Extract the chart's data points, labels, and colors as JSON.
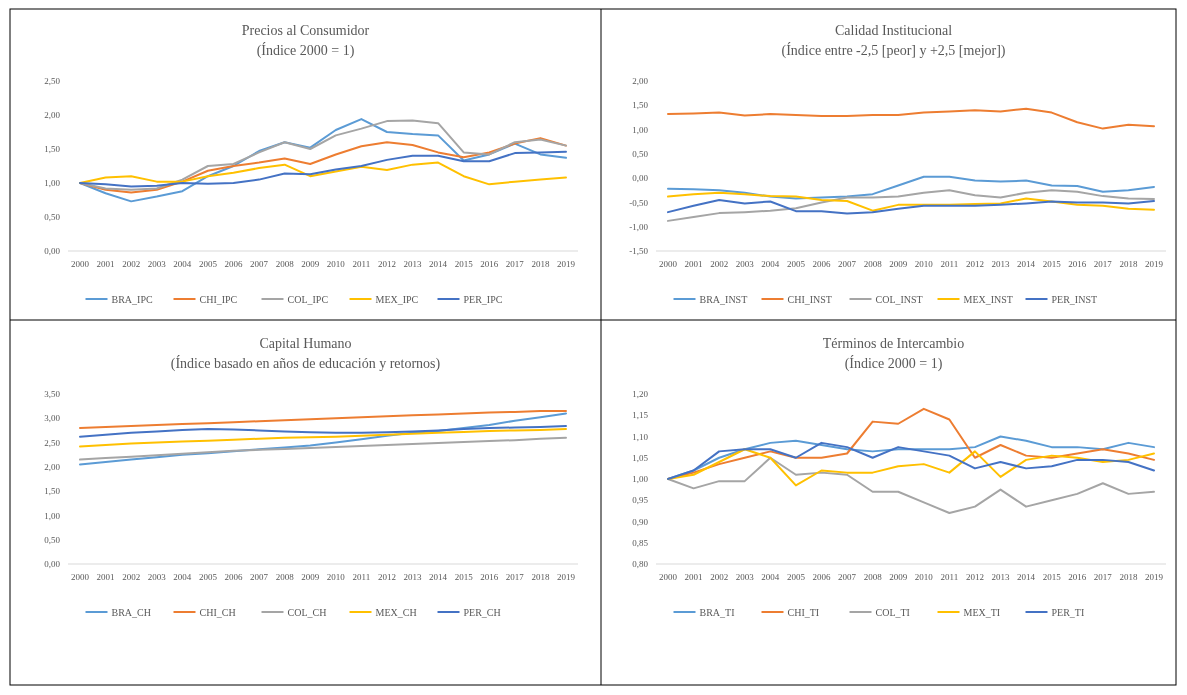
{
  "chart_data": [
    {
      "type": "line",
      "title": "Precios al Consumidor",
      "subtitle": "(Índice 2000 = 1)",
      "categories": [
        "2000",
        "2001",
        "2002",
        "2003",
        "2004",
        "2005",
        "2006",
        "2007",
        "2008",
        "2009",
        "2010",
        "2011",
        "2012",
        "2013",
        "2014",
        "2015",
        "2016",
        "2017",
        "2018",
        "2019"
      ],
      "ylim": [
        0,
        2.5
      ],
      "yticks": [
        {
          "value": 0,
          "label": "0,00"
        },
        {
          "value": 0.5,
          "label": "0,50"
        },
        {
          "value": 1,
          "label": "1,00"
        },
        {
          "value": 1.5,
          "label": "1,50"
        },
        {
          "value": 2,
          "label": "2,00"
        },
        {
          "value": 2.5,
          "label": "2,50"
        }
      ],
      "legend": "bottom",
      "grid": false,
      "series": [
        {
          "name": "BRA_IPC",
          "color": "#5b9bd5",
          "values": [
            1.0,
            0.85,
            0.73,
            0.8,
            0.88,
            1.1,
            1.25,
            1.47,
            1.6,
            1.52,
            1.78,
            1.94,
            1.75,
            1.72,
            1.7,
            1.33,
            1.42,
            1.58,
            1.42,
            1.37
          ]
        },
        {
          "name": "CHI_IPC",
          "color": "#ed7d31",
          "values": [
            1.0,
            0.9,
            0.86,
            0.9,
            1.02,
            1.18,
            1.25,
            1.3,
            1.36,
            1.28,
            1.42,
            1.54,
            1.6,
            1.56,
            1.45,
            1.38,
            1.45,
            1.58,
            1.66,
            1.55
          ]
        },
        {
          "name": "COL_IPC",
          "color": "#a5a5a5",
          "values": [
            1.0,
            0.92,
            0.9,
            0.92,
            1.05,
            1.25,
            1.28,
            1.45,
            1.6,
            1.5,
            1.7,
            1.8,
            1.91,
            1.92,
            1.88,
            1.45,
            1.42,
            1.6,
            1.64,
            1.55
          ]
        },
        {
          "name": "MEX_IPC",
          "color": "#ffc000",
          "values": [
            1.0,
            1.08,
            1.1,
            1.02,
            1.02,
            1.1,
            1.15,
            1.22,
            1.27,
            1.1,
            1.17,
            1.24,
            1.19,
            1.27,
            1.3,
            1.1,
            0.98,
            1.02,
            1.05,
            1.08
          ]
        },
        {
          "name": "PER_IPC",
          "color": "#4472c4",
          "values": [
            1.0,
            0.98,
            0.95,
            0.96,
            1.0,
            0.99,
            1.0,
            1.05,
            1.14,
            1.13,
            1.2,
            1.25,
            1.34,
            1.4,
            1.4,
            1.32,
            1.32,
            1.44,
            1.45,
            1.46
          ]
        }
      ]
    },
    {
      "type": "line",
      "title": "Calidad Institucional",
      "subtitle": "(Índice entre -2,5 [peor] y +2,5 [mejor])",
      "categories": [
        "2000",
        "2001",
        "2002",
        "2003",
        "2004",
        "2005",
        "2006",
        "2007",
        "2008",
        "2009",
        "2010",
        "2011",
        "2012",
        "2013",
        "2014",
        "2015",
        "2016",
        "2017",
        "2018",
        "2019"
      ],
      "ylim": [
        -1.5,
        2
      ],
      "yticks": [
        {
          "value": -1.5,
          "label": "-1,50"
        },
        {
          "value": -1,
          "label": "-1,00"
        },
        {
          "value": -0.5,
          "label": "-0,50"
        },
        {
          "value": 0,
          "label": "0,00"
        },
        {
          "value": 0.5,
          "label": "0,50"
        },
        {
          "value": 1,
          "label": "1,00"
        },
        {
          "value": 1.5,
          "label": "1,50"
        },
        {
          "value": 2,
          "label": "2,00"
        }
      ],
      "legend": "bottom",
      "grid": false,
      "series": [
        {
          "name": "BRA_INST",
          "color": "#5b9bd5",
          "values": [
            -0.22,
            -0.23,
            -0.25,
            -0.3,
            -0.38,
            -0.42,
            -0.4,
            -0.38,
            -0.33,
            -0.15,
            0.03,
            0.03,
            -0.05,
            -0.07,
            -0.05,
            -0.15,
            -0.16,
            -0.28,
            -0.25,
            -0.18
          ]
        },
        {
          "name": "CHI_INST",
          "color": "#ed7d31",
          "values": [
            1.32,
            1.33,
            1.35,
            1.29,
            1.32,
            1.3,
            1.28,
            1.28,
            1.3,
            1.3,
            1.35,
            1.37,
            1.4,
            1.37,
            1.43,
            1.35,
            1.15,
            1.02,
            1.1,
            1.07
          ]
        },
        {
          "name": "COL_INST",
          "color": "#a5a5a5",
          "values": [
            -0.88,
            -0.8,
            -0.72,
            -0.7,
            -0.67,
            -0.62,
            -0.5,
            -0.4,
            -0.4,
            -0.38,
            -0.3,
            -0.25,
            -0.35,
            -0.4,
            -0.3,
            -0.25,
            -0.28,
            -0.37,
            -0.42,
            -0.43
          ]
        },
        {
          "name": "MEX_INST",
          "color": "#ffc000",
          "values": [
            -0.38,
            -0.33,
            -0.3,
            -0.33,
            -0.37,
            -0.38,
            -0.45,
            -0.47,
            -0.67,
            -0.55,
            -0.55,
            -0.55,
            -0.53,
            -0.52,
            -0.42,
            -0.48,
            -0.55,
            -0.57,
            -0.63,
            -0.65
          ]
        },
        {
          "name": "PER_INST",
          "color": "#4472c4",
          "values": [
            -0.7,
            -0.57,
            -0.45,
            -0.52,
            -0.48,
            -0.68,
            -0.68,
            -0.73,
            -0.7,
            -0.63,
            -0.57,
            -0.57,
            -0.57,
            -0.55,
            -0.52,
            -0.48,
            -0.5,
            -0.5,
            -0.52,
            -0.47
          ]
        }
      ]
    },
    {
      "type": "line",
      "title": "Capital Humano",
      "subtitle": "(Índice basado en años de educación y retornos)",
      "categories": [
        "2000",
        "2001",
        "2002",
        "2003",
        "2004",
        "2005",
        "2006",
        "2007",
        "2008",
        "2009",
        "2010",
        "2011",
        "2012",
        "2013",
        "2014",
        "2015",
        "2016",
        "2017",
        "2018",
        "2019"
      ],
      "ylim": [
        0,
        3.5
      ],
      "yticks": [
        {
          "value": 0,
          "label": "0,00"
        },
        {
          "value": 0.5,
          "label": "0,50"
        },
        {
          "value": 1,
          "label": "1,00"
        },
        {
          "value": 1.5,
          "label": "1,50"
        },
        {
          "value": 2,
          "label": "2,00"
        },
        {
          "value": 2.5,
          "label": "2,50"
        },
        {
          "value": 3,
          "label": "3,00"
        },
        {
          "value": 3.5,
          "label": "3,50"
        }
      ],
      "legend": "bottom",
      "grid": false,
      "series": [
        {
          "name": "BRA_CH",
          "color": "#5b9bd5",
          "values": [
            2.05,
            2.1,
            2.15,
            2.2,
            2.25,
            2.28,
            2.32,
            2.36,
            2.4,
            2.44,
            2.5,
            2.57,
            2.64,
            2.7,
            2.74,
            2.8,
            2.86,
            2.95,
            3.02,
            3.1
          ]
        },
        {
          "name": "CHI_CH",
          "color": "#ed7d31",
          "values": [
            2.8,
            2.82,
            2.84,
            2.86,
            2.88,
            2.9,
            2.92,
            2.94,
            2.96,
            2.98,
            3.0,
            3.02,
            3.04,
            3.06,
            3.08,
            3.1,
            3.12,
            3.13,
            3.15,
            3.15
          ]
        },
        {
          "name": "COL_CH",
          "color": "#a5a5a5",
          "values": [
            2.15,
            2.18,
            2.21,
            2.24,
            2.27,
            2.3,
            2.33,
            2.35,
            2.37,
            2.39,
            2.41,
            2.43,
            2.45,
            2.47,
            2.49,
            2.51,
            2.53,
            2.55,
            2.58,
            2.6
          ]
        },
        {
          "name": "MEX_CH",
          "color": "#ffc000",
          "values": [
            2.42,
            2.45,
            2.48,
            2.5,
            2.52,
            2.54,
            2.56,
            2.58,
            2.6,
            2.61,
            2.62,
            2.64,
            2.66,
            2.68,
            2.7,
            2.72,
            2.74,
            2.75,
            2.76,
            2.78
          ]
        },
        {
          "name": "PER_CH",
          "color": "#4472c4",
          "values": [
            2.62,
            2.66,
            2.7,
            2.73,
            2.76,
            2.78,
            2.77,
            2.75,
            2.73,
            2.71,
            2.7,
            2.7,
            2.71,
            2.73,
            2.75,
            2.78,
            2.8,
            2.81,
            2.82,
            2.84
          ]
        }
      ]
    },
    {
      "type": "line",
      "title": "Términos de Intercambio",
      "subtitle": "(Índice 2000 = 1)",
      "categories": [
        "2000",
        "2001",
        "2002",
        "2003",
        "2004",
        "2005",
        "2006",
        "2007",
        "2008",
        "2009",
        "2010",
        "2011",
        "2012",
        "2013",
        "2014",
        "2015",
        "2016",
        "2017",
        "2018",
        "2019"
      ],
      "ylim": [
        0.8,
        1.2
      ],
      "yticks": [
        {
          "value": 0.8,
          "label": "0,80"
        },
        {
          "value": 0.85,
          "label": "0,85"
        },
        {
          "value": 0.9,
          "label": "0,90"
        },
        {
          "value": 0.95,
          "label": "0,95"
        },
        {
          "value": 1,
          "label": "1,00"
        },
        {
          "value": 1.05,
          "label": "1,05"
        },
        {
          "value": 1.1,
          "label": "1,10"
        },
        {
          "value": 1.15,
          "label": "1,15"
        },
        {
          "value": 1.2,
          "label": "1,20"
        }
      ],
      "legend": "bottom",
      "grid": false,
      "series": [
        {
          "name": "BRA_TI",
          "color": "#5b9bd5",
          "values": [
            1.0,
            1.02,
            1.05,
            1.07,
            1.085,
            1.09,
            1.08,
            1.07,
            1.065,
            1.07,
            1.07,
            1.07,
            1.075,
            1.1,
            1.09,
            1.075,
            1.075,
            1.07,
            1.085,
            1.075
          ]
        },
        {
          "name": "CHI_TI",
          "color": "#ed7d31",
          "values": [
            1.0,
            1.015,
            1.035,
            1.05,
            1.065,
            1.05,
            1.05,
            1.06,
            1.135,
            1.13,
            1.165,
            1.14,
            1.05,
            1.08,
            1.055,
            1.05,
            1.06,
            1.07,
            1.06,
            1.045
          ]
        },
        {
          "name": "COL_TI",
          "color": "#a5a5a5",
          "values": [
            1.0,
            0.978,
            0.995,
            0.995,
            1.05,
            1.01,
            1.015,
            1.01,
            0.97,
            0.97,
            0.945,
            0.92,
            0.935,
            0.975,
            0.935,
            0.95,
            0.965,
            0.99,
            0.965,
            0.97
          ]
        },
        {
          "name": "MEX_TI",
          "color": "#ffc000",
          "values": [
            1.0,
            1.01,
            1.04,
            1.07,
            1.05,
            0.985,
            1.02,
            1.015,
            1.015,
            1.03,
            1.035,
            1.015,
            1.065,
            1.005,
            1.045,
            1.055,
            1.05,
            1.04,
            1.045,
            1.06
          ]
        },
        {
          "name": "PER_TI",
          "color": "#4472c4",
          "values": [
            1.0,
            1.02,
            1.065,
            1.07,
            1.07,
            1.05,
            1.085,
            1.075,
            1.05,
            1.075,
            1.065,
            1.055,
            1.025,
            1.04,
            1.025,
            1.03,
            1.045,
            1.045,
            1.04,
            1.02
          ]
        }
      ]
    }
  ]
}
